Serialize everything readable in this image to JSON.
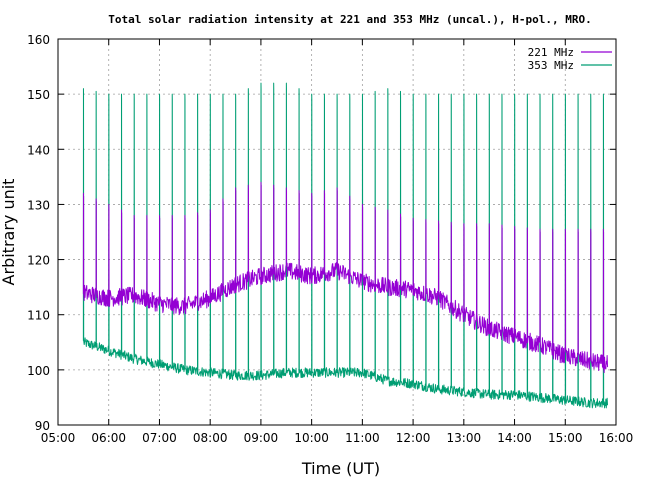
{
  "chart_data": {
    "type": "line",
    "title": "Total solar radiation intensity at 221 and 353 MHz (uncal.), H-pol., MRO.",
    "xlabel": "Time (UT)",
    "ylabel": "Arbitrary unit",
    "xlim": [
      "05:00",
      "16:00"
    ],
    "ylim": [
      90,
      160
    ],
    "x_ticks": [
      "05:00",
      "06:00",
      "07:00",
      "08:00",
      "09:00",
      "10:00",
      "11:00",
      "12:00",
      "13:00",
      "14:00",
      "15:00",
      "16:00"
    ],
    "y_ticks": [
      90,
      100,
      110,
      120,
      130,
      140,
      150,
      160
    ],
    "grid": true,
    "legend_position": "top-right",
    "calibration_interval_minutes": 15,
    "series": [
      {
        "name": "221 MHz",
        "color": "#9400d3",
        "x": [
          "05:30",
          "06:00",
          "06:30",
          "07:00",
          "07:30",
          "08:00",
          "08:30",
          "09:00",
          "09:30",
          "10:00",
          "10:30",
          "11:00",
          "11:30",
          "12:00",
          "12:30",
          "13:00",
          "13:30",
          "14:00",
          "14:30",
          "15:00",
          "15:30",
          "15:50"
        ],
        "values": [
          114,
          113,
          113.5,
          112,
          111.5,
          113,
          115.5,
          117,
          118,
          117,
          118,
          116,
          115,
          114.5,
          113,
          110,
          107.5,
          106,
          104.5,
          102.5,
          101.5,
          101
        ],
        "pulse_peak": [
          132,
          130,
          128,
          128,
          128,
          129,
          133,
          134,
          133,
          132,
          133,
          130,
          129,
          127.5,
          127,
          126.5,
          126.5,
          126,
          125.5,
          125.5,
          125.5,
          125.5
        ]
      },
      {
        "name": "353 MHz",
        "color": "#009e73",
        "x": [
          "05:30",
          "06:00",
          "06:30",
          "07:00",
          "07:30",
          "08:00",
          "08:30",
          "09:00",
          "09:30",
          "10:00",
          "10:30",
          "11:00",
          "11:30",
          "12:00",
          "12:30",
          "13:00",
          "13:30",
          "14:00",
          "14:30",
          "15:00",
          "15:30",
          "15:50"
        ],
        "values": [
          105,
          103.5,
          102,
          101,
          100,
          99.5,
          99,
          99,
          99.5,
          99.5,
          99.5,
          99.5,
          98,
          97.5,
          96.5,
          96,
          95.5,
          95.5,
          95,
          94.5,
          94,
          94
        ],
        "pulse_peak": [
          151,
          150,
          150,
          150,
          150,
          150,
          150,
          152,
          152,
          150,
          150,
          150,
          151,
          150,
          150,
          150,
          150,
          150,
          150,
          150,
          150,
          150
        ]
      }
    ]
  }
}
